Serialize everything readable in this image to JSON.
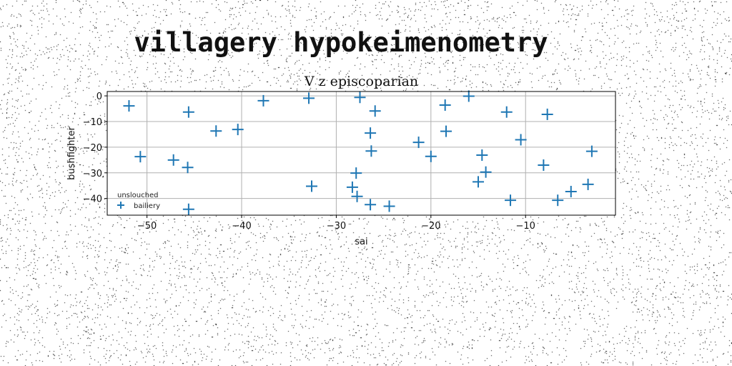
{
  "figure": {
    "suptitle": "villagery hypokeimenometry"
  },
  "chart_data": {
    "type": "scatter",
    "title": "V z episcoparian",
    "xlabel": "sai",
    "ylabel": "bushfighter",
    "xlim": [
      -54.2,
      -0.5
    ],
    "ylim": [
      -46.5,
      1.7
    ],
    "xticks": [
      -50,
      -40,
      -30,
      -20,
      -10
    ],
    "yticks": [
      0,
      -10,
      -20,
      -30,
      -40
    ],
    "grid": true,
    "legend": {
      "title": "unslouched",
      "placement": "lower-left",
      "entries": [
        "bailiery"
      ]
    },
    "marker": "+",
    "series": [
      {
        "name": "bailiery",
        "color": "#1f77b4",
        "points": [
          [
            -51.9,
            -3.9
          ],
          [
            -50.7,
            -23.7
          ],
          [
            -47.2,
            -25.0
          ],
          [
            -45.6,
            -6.3
          ],
          [
            -45.7,
            -27.9
          ],
          [
            -45.6,
            -44.2
          ],
          [
            -42.7,
            -13.7
          ],
          [
            -40.4,
            -13.1
          ],
          [
            -37.7,
            -1.9
          ],
          [
            -32.9,
            -0.9
          ],
          [
            -32.6,
            -35.2
          ],
          [
            -28.3,
            -35.6
          ],
          [
            -27.9,
            -30.1
          ],
          [
            -27.8,
            -39.2
          ],
          [
            -27.5,
            -0.6
          ],
          [
            -26.4,
            -14.5
          ],
          [
            -26.3,
            -21.5
          ],
          [
            -26.4,
            -42.4
          ],
          [
            -25.9,
            -5.9
          ],
          [
            -24.4,
            -43.0
          ],
          [
            -21.3,
            -18.1
          ],
          [
            -20.0,
            -23.6
          ],
          [
            -18.5,
            -3.6
          ],
          [
            -18.4,
            -13.8
          ],
          [
            -16.0,
            -0.1
          ],
          [
            -14.6,
            -23.1
          ],
          [
            -14.2,
            -29.7
          ],
          [
            -15.0,
            -33.5
          ],
          [
            -12.0,
            -6.3
          ],
          [
            -11.6,
            -40.7
          ],
          [
            -10.5,
            -17.1
          ],
          [
            -8.1,
            -27.0
          ],
          [
            -7.7,
            -7.2
          ],
          [
            -6.6,
            -40.7
          ],
          [
            -5.2,
            -37.3
          ],
          [
            -3.4,
            -34.5
          ],
          [
            -3.0,
            -21.6
          ]
        ]
      }
    ]
  }
}
